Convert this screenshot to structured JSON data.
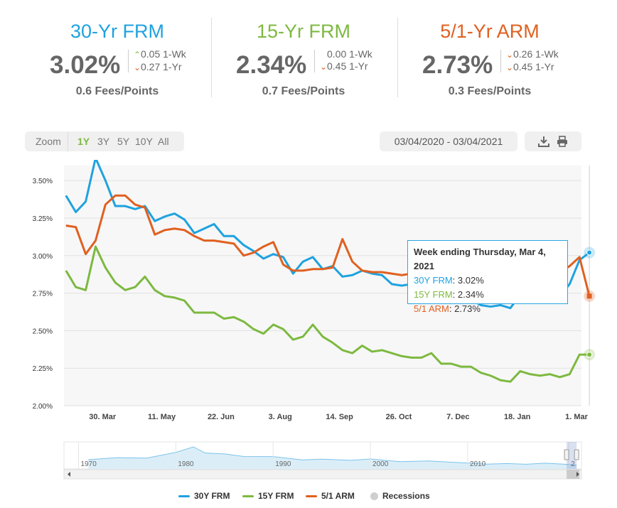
{
  "rates": [
    {
      "title": "30-Yr FRM",
      "color": "#1fa2df",
      "value": "3.02%",
      "wk_dir": "up",
      "wk": "0.05 1-Wk",
      "yr_dir": "down",
      "yr": "0.27 1-Yr",
      "fees": "0.6 Fees/Points"
    },
    {
      "title": "15-Yr FRM",
      "color": "#7db940",
      "value": "2.34%",
      "wk_dir": "none",
      "wk": "0.00 1-Wk",
      "yr_dir": "down",
      "yr": "0.45 1-Yr",
      "fees": "0.7 Fees/Points"
    },
    {
      "title": "5/1-Yr ARM",
      "color": "#e06020",
      "value": "2.73%",
      "wk_dir": "down",
      "wk": "0.26 1-Wk",
      "yr_dir": "down",
      "yr": "0.45 1-Yr",
      "fees": "0.3 Fees/Points"
    }
  ],
  "zoom": {
    "label": "Zoom",
    "options": [
      "1Y",
      "3Y",
      "5Y",
      "10Y",
      "All"
    ],
    "active": "1Y"
  },
  "date_range": "03/04/2020 - 03/04/2021",
  "icons": {
    "download": "download-icon",
    "print": "print-icon"
  },
  "tooltip": {
    "title": "Week ending Thursday, Mar 4, 2021",
    "k30": "30Y FRM",
    "v30": "3.02%",
    "k15": "15Y FRM",
    "v15": "2.34%",
    "k51": "5/1 ARM",
    "v51": "2.73%"
  },
  "legend": {
    "frm30": "30Y FRM",
    "frm15": "15Y FRM",
    "arm51": "5/1 ARM",
    "recessions": "Recessions"
  },
  "chart_data": {
    "type": "line",
    "ylim": [
      2.0,
      3.6
    ],
    "y_ticks": [
      "2.00%",
      "2.25%",
      "2.50%",
      "2.75%",
      "3.00%",
      "3.25%",
      "3.50%"
    ],
    "y_tick_values": [
      2.0,
      2.25,
      2.5,
      2.75,
      3.0,
      3.25,
      3.5
    ],
    "x_ticks": [
      "30. Mar",
      "11. May",
      "22. Jun",
      "3. Aug",
      "14. Sep",
      "26. Oct",
      "7. Dec",
      "18. Jan",
      "1. Mar"
    ],
    "x_tick_weeks": [
      3.7,
      9.7,
      15.7,
      21.7,
      27.7,
      33.7,
      39.7,
      45.7,
      51.7
    ],
    "x_range_weeks": [
      -0.2,
      52.2
    ],
    "grid": true,
    "legend_position": "bottom",
    "series": [
      {
        "name": "30Y FRM",
        "color": "#1fa2df",
        "values": [
          3.4,
          3.29,
          3.36,
          3.65,
          3.5,
          3.33,
          3.33,
          3.31,
          3.33,
          3.23,
          3.26,
          3.28,
          3.24,
          3.15,
          3.18,
          3.21,
          3.13,
          3.13,
          3.07,
          3.03,
          2.98,
          3.01,
          2.99,
          2.88,
          2.96,
          2.99,
          2.91,
          2.93,
          2.86,
          2.87,
          2.9,
          2.88,
          2.87,
          2.81,
          2.8,
          2.81,
          2.78,
          2.8,
          2.72,
          2.72,
          2.71,
          2.71,
          2.67,
          2.66,
          2.67,
          2.65,
          2.74,
          2.79,
          2.77,
          2.73,
          2.73,
          2.81,
          2.97,
          3.02
        ]
      },
      {
        "name": "15Y FRM",
        "color": "#7db940",
        "values": [
          2.9,
          2.79,
          2.77,
          3.06,
          2.92,
          2.82,
          2.77,
          2.79,
          2.86,
          2.77,
          2.73,
          2.72,
          2.7,
          2.62,
          2.62,
          2.62,
          2.58,
          2.59,
          2.56,
          2.51,
          2.48,
          2.54,
          2.51,
          2.44,
          2.46,
          2.54,
          2.46,
          2.42,
          2.37,
          2.35,
          2.4,
          2.36,
          2.37,
          2.35,
          2.33,
          2.32,
          2.32,
          2.35,
          2.28,
          2.28,
          2.26,
          2.26,
          2.22,
          2.2,
          2.17,
          2.16,
          2.23,
          2.21,
          2.2,
          2.21,
          2.19,
          2.21,
          2.34,
          2.34
        ]
      },
      {
        "name": "5/1 ARM",
        "color": "#e06020",
        "values": [
          3.2,
          3.19,
          3.01,
          3.1,
          3.34,
          3.4,
          3.4,
          3.34,
          3.32,
          3.14,
          3.17,
          3.18,
          3.17,
          3.13,
          3.1,
          3.1,
          3.09,
          3.08,
          3.0,
          3.02,
          3.06,
          3.09,
          2.94,
          2.9,
          2.9,
          2.91,
          2.91,
          2.92,
          3.11,
          2.96,
          2.9,
          2.89,
          2.89,
          2.88,
          2.87,
          2.88,
          2.88,
          2.89,
          2.86,
          2.86,
          2.85,
          2.84,
          2.81,
          2.78,
          2.71,
          2.75,
          2.79,
          2.81,
          2.82,
          2.84,
          2.89,
          2.93,
          2.99,
          2.73
        ]
      }
    ]
  },
  "navigator": {
    "labels": [
      "1970",
      "1980",
      "1990",
      "2000",
      "2010",
      "2"
    ],
    "label_years": [
      1970,
      1980,
      1990,
      2000,
      2010,
      2020.4
    ],
    "year_range": [
      1968.5,
      2021.7
    ]
  }
}
